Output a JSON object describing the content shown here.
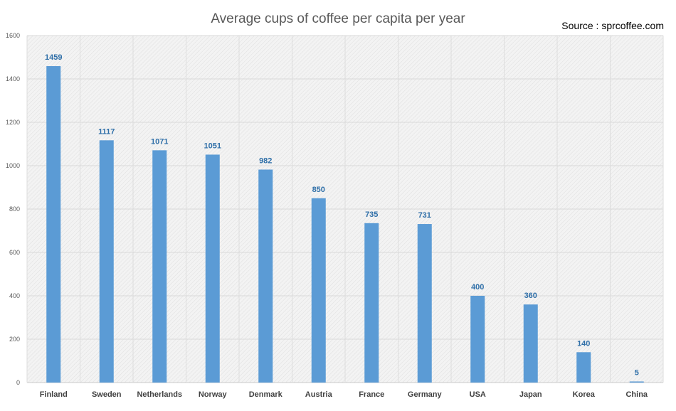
{
  "chart_data": {
    "type": "bar",
    "title": "Average cups of coffee per capita per year",
    "source": "Source : sprcoffee.com",
    "categories": [
      "Finland",
      "Sweden",
      "Netherlands",
      "Norway",
      "Denmark",
      "Austria",
      "France",
      "Germany",
      "USA",
      "Japan",
      "Korea",
      "China"
    ],
    "values": [
      1459,
      1117,
      1071,
      1051,
      982,
      850,
      735,
      731,
      400,
      360,
      140,
      5
    ],
    "xlabel": "",
    "ylabel": "",
    "ylim": [
      0,
      1600
    ],
    "yticks": [
      0,
      200,
      400,
      600,
      800,
      1000,
      1200,
      1400,
      1600
    ],
    "grid": true,
    "data_labels": true,
    "bar_color": "#5b9bd5",
    "label_color": "#2f6fa8"
  }
}
